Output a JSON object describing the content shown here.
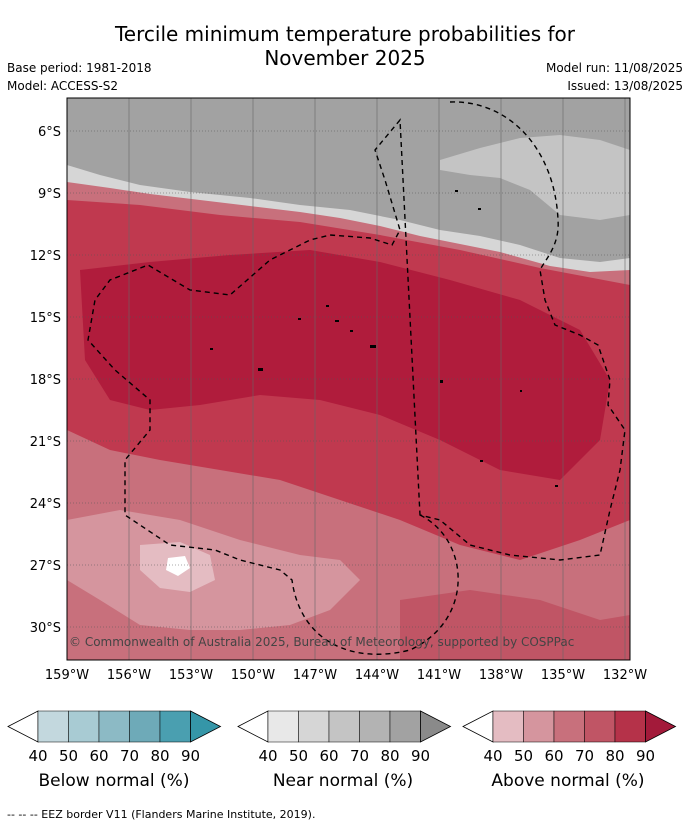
{
  "title_line1": "Tercile minimum temperature probabilities for",
  "title_line2": "November 2025",
  "meta": {
    "base_period": "Base period: 1981-2018",
    "model": "Model: ACCESS-S2",
    "model_run": "Model run: 11/08/2025",
    "issued": "Issued: 13/08/2025"
  },
  "map": {
    "lat_labels": [
      "6°S",
      "9°S",
      "12°S",
      "15°S",
      "18°S",
      "21°S",
      "24°S",
      "27°S",
      "30°S"
    ],
    "lon_labels": [
      "159°W",
      "156°W",
      "153°W",
      "150°W",
      "147°W",
      "144°W",
      "141°W",
      "138°W",
      "135°W",
      "132°W"
    ],
    "copyright": "© Commonwealth of Australia 2025, Bureau of Meteorology, supported by COSPPac"
  },
  "colorbars": [
    {
      "label": "Below normal (%)",
      "ticks": [
        "40",
        "50",
        "60",
        "70",
        "80",
        "90"
      ],
      "colors": [
        "#ffffff",
        "#c3d8de",
        "#a8cbd3",
        "#8cbac5",
        "#6eaab8",
        "#4a9fb0",
        "#3596a8"
      ]
    },
    {
      "label": "Near normal (%)",
      "ticks": [
        "40",
        "50",
        "60",
        "70",
        "80",
        "90"
      ],
      "colors": [
        "#ffffff",
        "#e8e8e8",
        "#d6d6d6",
        "#c4c4c4",
        "#b3b3b3",
        "#a2a2a2",
        "#8a8a8a"
      ]
    },
    {
      "label": "Above normal (%)",
      "ticks": [
        "40",
        "50",
        "60",
        "70",
        "80",
        "90"
      ],
      "colors": [
        "#ffffff",
        "#e4bcc2",
        "#d5959e",
        "#c8707c",
        "#c05565",
        "#b53249",
        "#a31a3a"
      ]
    }
  ],
  "footer": "--  --  -- EEZ border V11 (Flanders Marine Institute, 2019).",
  "colors": {
    "near_normal_grey": "#a2a2a2",
    "near_normal_light": "#c4c4c4",
    "above_dark": "#b01c3c",
    "above_mid": "#c0394f",
    "above_light": "#d5959e",
    "above_lighter": "#e4bcc2"
  }
}
